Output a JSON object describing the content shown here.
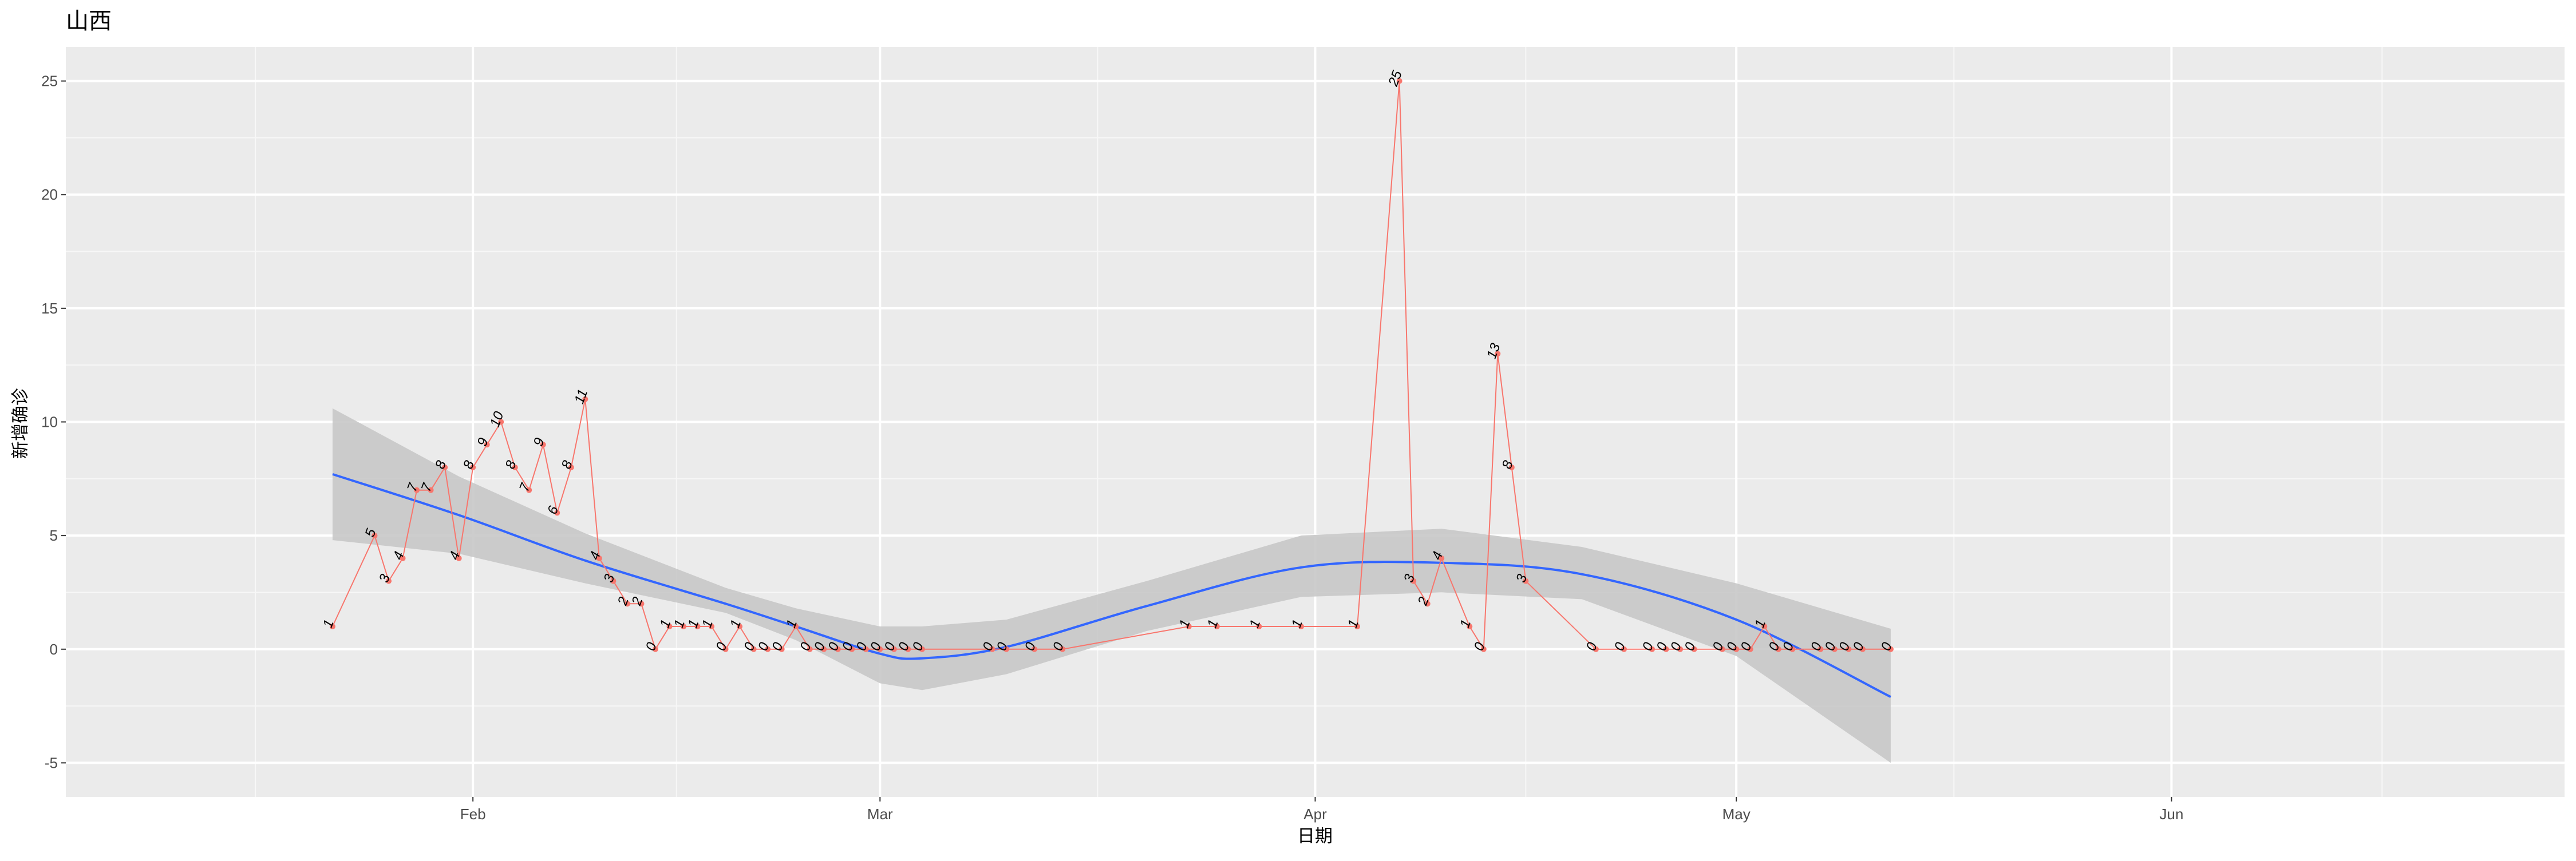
{
  "chart_data": {
    "type": "line",
    "title": "山西",
    "xlabel": "日期",
    "ylabel": "新增确诊",
    "x_ticks": [
      "Feb",
      "Mar",
      "Apr",
      "May",
      "Jun"
    ],
    "y_ticks": [
      "-5",
      "0",
      "5",
      "10",
      "15",
      "20",
      "25"
    ],
    "xlim": [
      "2020-01-03",
      "2020-06-29"
    ],
    "ylim": [
      -6.5,
      26.5
    ],
    "grid": true,
    "background": "#ebebeb",
    "series": [
      {
        "kind": "points+line",
        "color": "#f8766d",
        "x": [
          "2020-01-22",
          "2020-01-25",
          "2020-01-26",
          "2020-01-27",
          "2020-01-28",
          "2020-01-29",
          "2020-01-30",
          "2020-01-31",
          "2020-02-01",
          "2020-02-02",
          "2020-02-03",
          "2020-02-04",
          "2020-02-05",
          "2020-02-06",
          "2020-02-07",
          "2020-02-08",
          "2020-02-09",
          "2020-02-10",
          "2020-02-11",
          "2020-02-12",
          "2020-02-13",
          "2020-02-14",
          "2020-02-15",
          "2020-02-16",
          "2020-02-17",
          "2020-02-18",
          "2020-02-19",
          "2020-02-20",
          "2020-02-21",
          "2020-02-22",
          "2020-02-23",
          "2020-02-24",
          "2020-02-25",
          "2020-02-26",
          "2020-02-27",
          "2020-02-28",
          "2020-02-29",
          "2020-03-01",
          "2020-03-02",
          "2020-03-03",
          "2020-03-04",
          "2020-03-09",
          "2020-03-10",
          "2020-03-12",
          "2020-03-14",
          "2020-03-23",
          "2020-03-25",
          "2020-03-28",
          "2020-03-31",
          "2020-04-04",
          "2020-04-07",
          "2020-04-08",
          "2020-04-09",
          "2020-04-10",
          "2020-04-12",
          "2020-04-13",
          "2020-04-14",
          "2020-04-15",
          "2020-04-16",
          "2020-04-21",
          "2020-04-23",
          "2020-04-25",
          "2020-04-26",
          "2020-04-27",
          "2020-04-28",
          "2020-04-30",
          "2020-05-01",
          "2020-05-02",
          "2020-05-03",
          "2020-05-04",
          "2020-05-05",
          "2020-05-07",
          "2020-05-08",
          "2020-05-09",
          "2020-05-10",
          "2020-05-12"
        ],
        "y": [
          1,
          5,
          3,
          4,
          7,
          7,
          8,
          4,
          8,
          9,
          10,
          8,
          7,
          9,
          6,
          8,
          11,
          4,
          3,
          2,
          2,
          0,
          1,
          1,
          1,
          1,
          0,
          1,
          0,
          0,
          0,
          1,
          0,
          0,
          0,
          0,
          0,
          0,
          0,
          0,
          0,
          0,
          0,
          0,
          0,
          1,
          1,
          1,
          1,
          1,
          25,
          3,
          2,
          4,
          1,
          0,
          13,
          8,
          3,
          0,
          0,
          0,
          0,
          0,
          0,
          0,
          0,
          0,
          1,
          0,
          0,
          0,
          0,
          0,
          0,
          0
        ],
        "labels": [
          "1",
          "5",
          "3",
          "4",
          "7",
          "7",
          "8",
          "4",
          "8",
          "9",
          "10",
          "8",
          "7",
          "9",
          "6",
          "8",
          "11",
          "4",
          "3",
          "2",
          "2",
          "0",
          "1",
          "1",
          "1",
          "1",
          "0",
          "1",
          "0",
          "0",
          "0",
          "1",
          "0",
          "0",
          "0",
          "0",
          "0",
          "0",
          "0",
          "0",
          "0",
          "0",
          "0",
          "0",
          "0",
          "1",
          "1",
          "1",
          "1",
          "1",
          "25",
          "3",
          "2",
          "4",
          "1",
          "0",
          "13",
          "8",
          "3",
          "0",
          "0",
          "0",
          "0",
          "0",
          "0",
          "0",
          "0",
          "0",
          "1",
          "0",
          "0",
          "0",
          "0",
          "0",
          "0",
          "0"
        ]
      },
      {
        "kind": "smooth",
        "color": "#3366ff",
        "band_color": "#c8c8c8",
        "x": [
          "2020-01-22",
          "2020-01-31",
          "2020-02-09",
          "2020-02-19",
          "2020-02-24",
          "2020-03-01",
          "2020-03-04",
          "2020-03-10",
          "2020-03-20",
          "2020-03-31",
          "2020-04-10",
          "2020-04-20",
          "2020-05-01",
          "2020-05-12"
        ],
        "y": [
          7.7,
          5.9,
          3.9,
          2.0,
          1.0,
          -0.2,
          -0.4,
          0.1,
          1.9,
          3.6,
          3.8,
          3.3,
          1.3,
          -2.1
        ],
        "lower": [
          4.8,
          4.2,
          2.9,
          1.6,
          0.4,
          -1.5,
          -1.8,
          -1.1,
          0.8,
          2.3,
          2.5,
          2.2,
          -0.3,
          -5.0
        ],
        "upper": [
          10.6,
          7.6,
          5.1,
          2.7,
          1.8,
          1.0,
          1.0,
          1.3,
          3.0,
          5.0,
          5.3,
          4.5,
          2.9,
          0.9
        ]
      }
    ]
  }
}
